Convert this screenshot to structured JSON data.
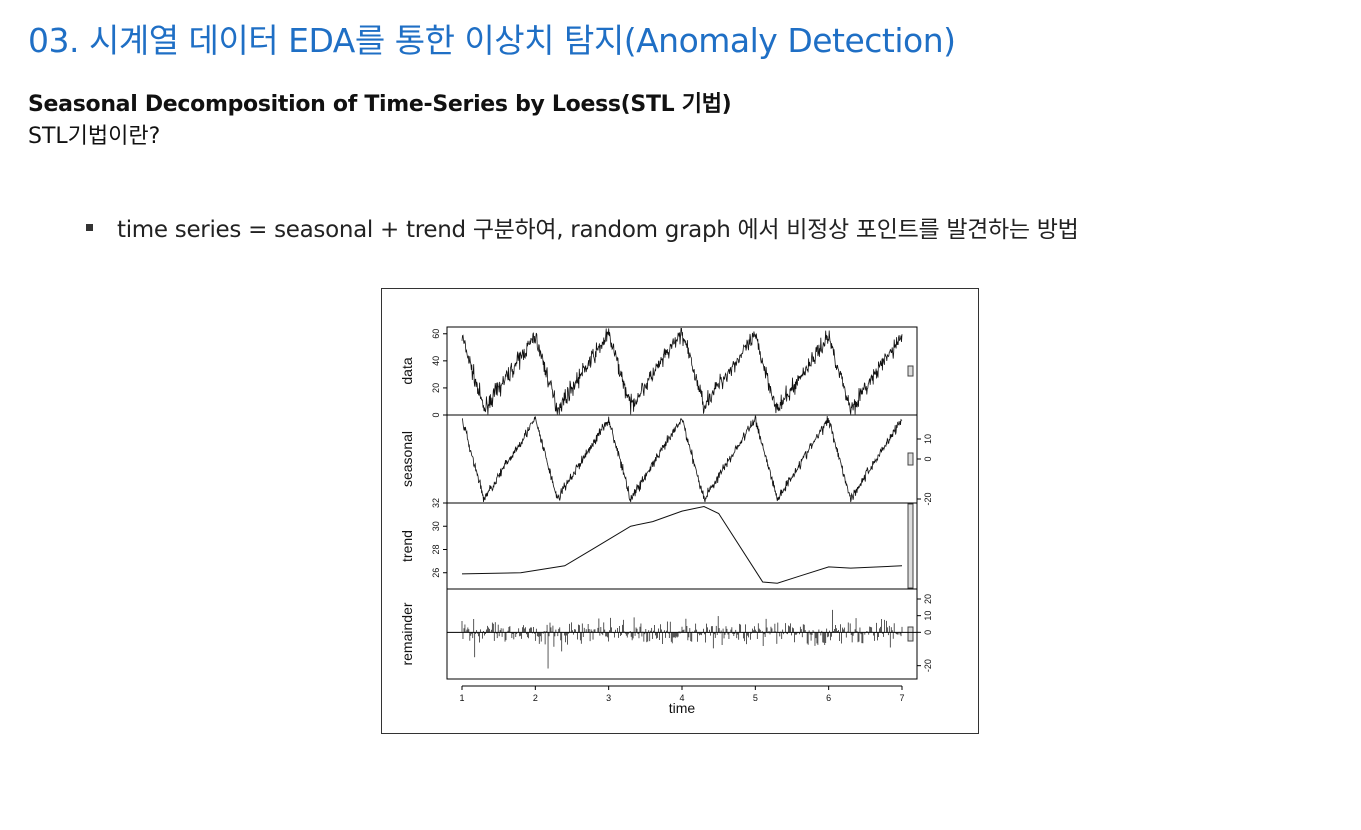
{
  "slide": {
    "title": "03. 시계열 데이터 EDA를 통한 이상치 탐지(Anomaly Detection)",
    "subtitle": "Seasonal Decomposition of Time-Series by Loess(STL 기법)",
    "question": "STL기법이란?",
    "bullet": "time series = seasonal + trend 구분하여, random graph 에서 비정상 포인트를 발견하는 방법",
    "title_color": "#1f6fc5"
  },
  "chart_data": {
    "type": "line",
    "xlabel": "time",
    "xlim": [
      1,
      7
    ],
    "x_ticks": [
      "1",
      "2",
      "3",
      "4",
      "5",
      "6",
      "7"
    ],
    "panels": [
      {
        "name": "data",
        "ylabel": "data",
        "ylim": [
          0,
          65
        ],
        "y_ticks": [
          "0",
          "20",
          "40",
          "60"
        ],
        "axis_side": "left",
        "description_values": {
          "min": 0,
          "max": 68,
          "cycles_per_unit": 1
        }
      },
      {
        "name": "seasonal",
        "ylabel": "seasonal",
        "ylim": [
          -22,
          22
        ],
        "y_ticks": [
          "-20",
          "0",
          "10"
        ],
        "axis_side": "right",
        "description_values": {
          "min": -20,
          "max": 20
        }
      },
      {
        "name": "trend",
        "ylabel": "trend",
        "ylim": [
          24.6,
          32
        ],
        "y_ticks": [
          "26",
          "28",
          "30",
          "32"
        ],
        "axis_side": "left",
        "x": [
          1.0,
          1.8,
          2.4,
          2.8,
          3.3,
          3.6,
          4.0,
          4.3,
          4.5,
          5.1,
          5.3,
          5.6,
          6.0,
          6.3,
          7.0
        ],
        "values": [
          25.9,
          26.0,
          26.6,
          28.1,
          30.0,
          30.4,
          31.3,
          31.7,
          31.1,
          25.2,
          25.1,
          25.7,
          26.5,
          26.4,
          26.6
        ]
      },
      {
        "name": "remainder",
        "ylabel": "remainder",
        "ylim": [
          -28,
          26
        ],
        "y_ticks": [
          "-20",
          "0",
          "10",
          "20"
        ],
        "axis_side": "right",
        "description_values": {
          "min": -25,
          "max": 24
        }
      }
    ]
  }
}
